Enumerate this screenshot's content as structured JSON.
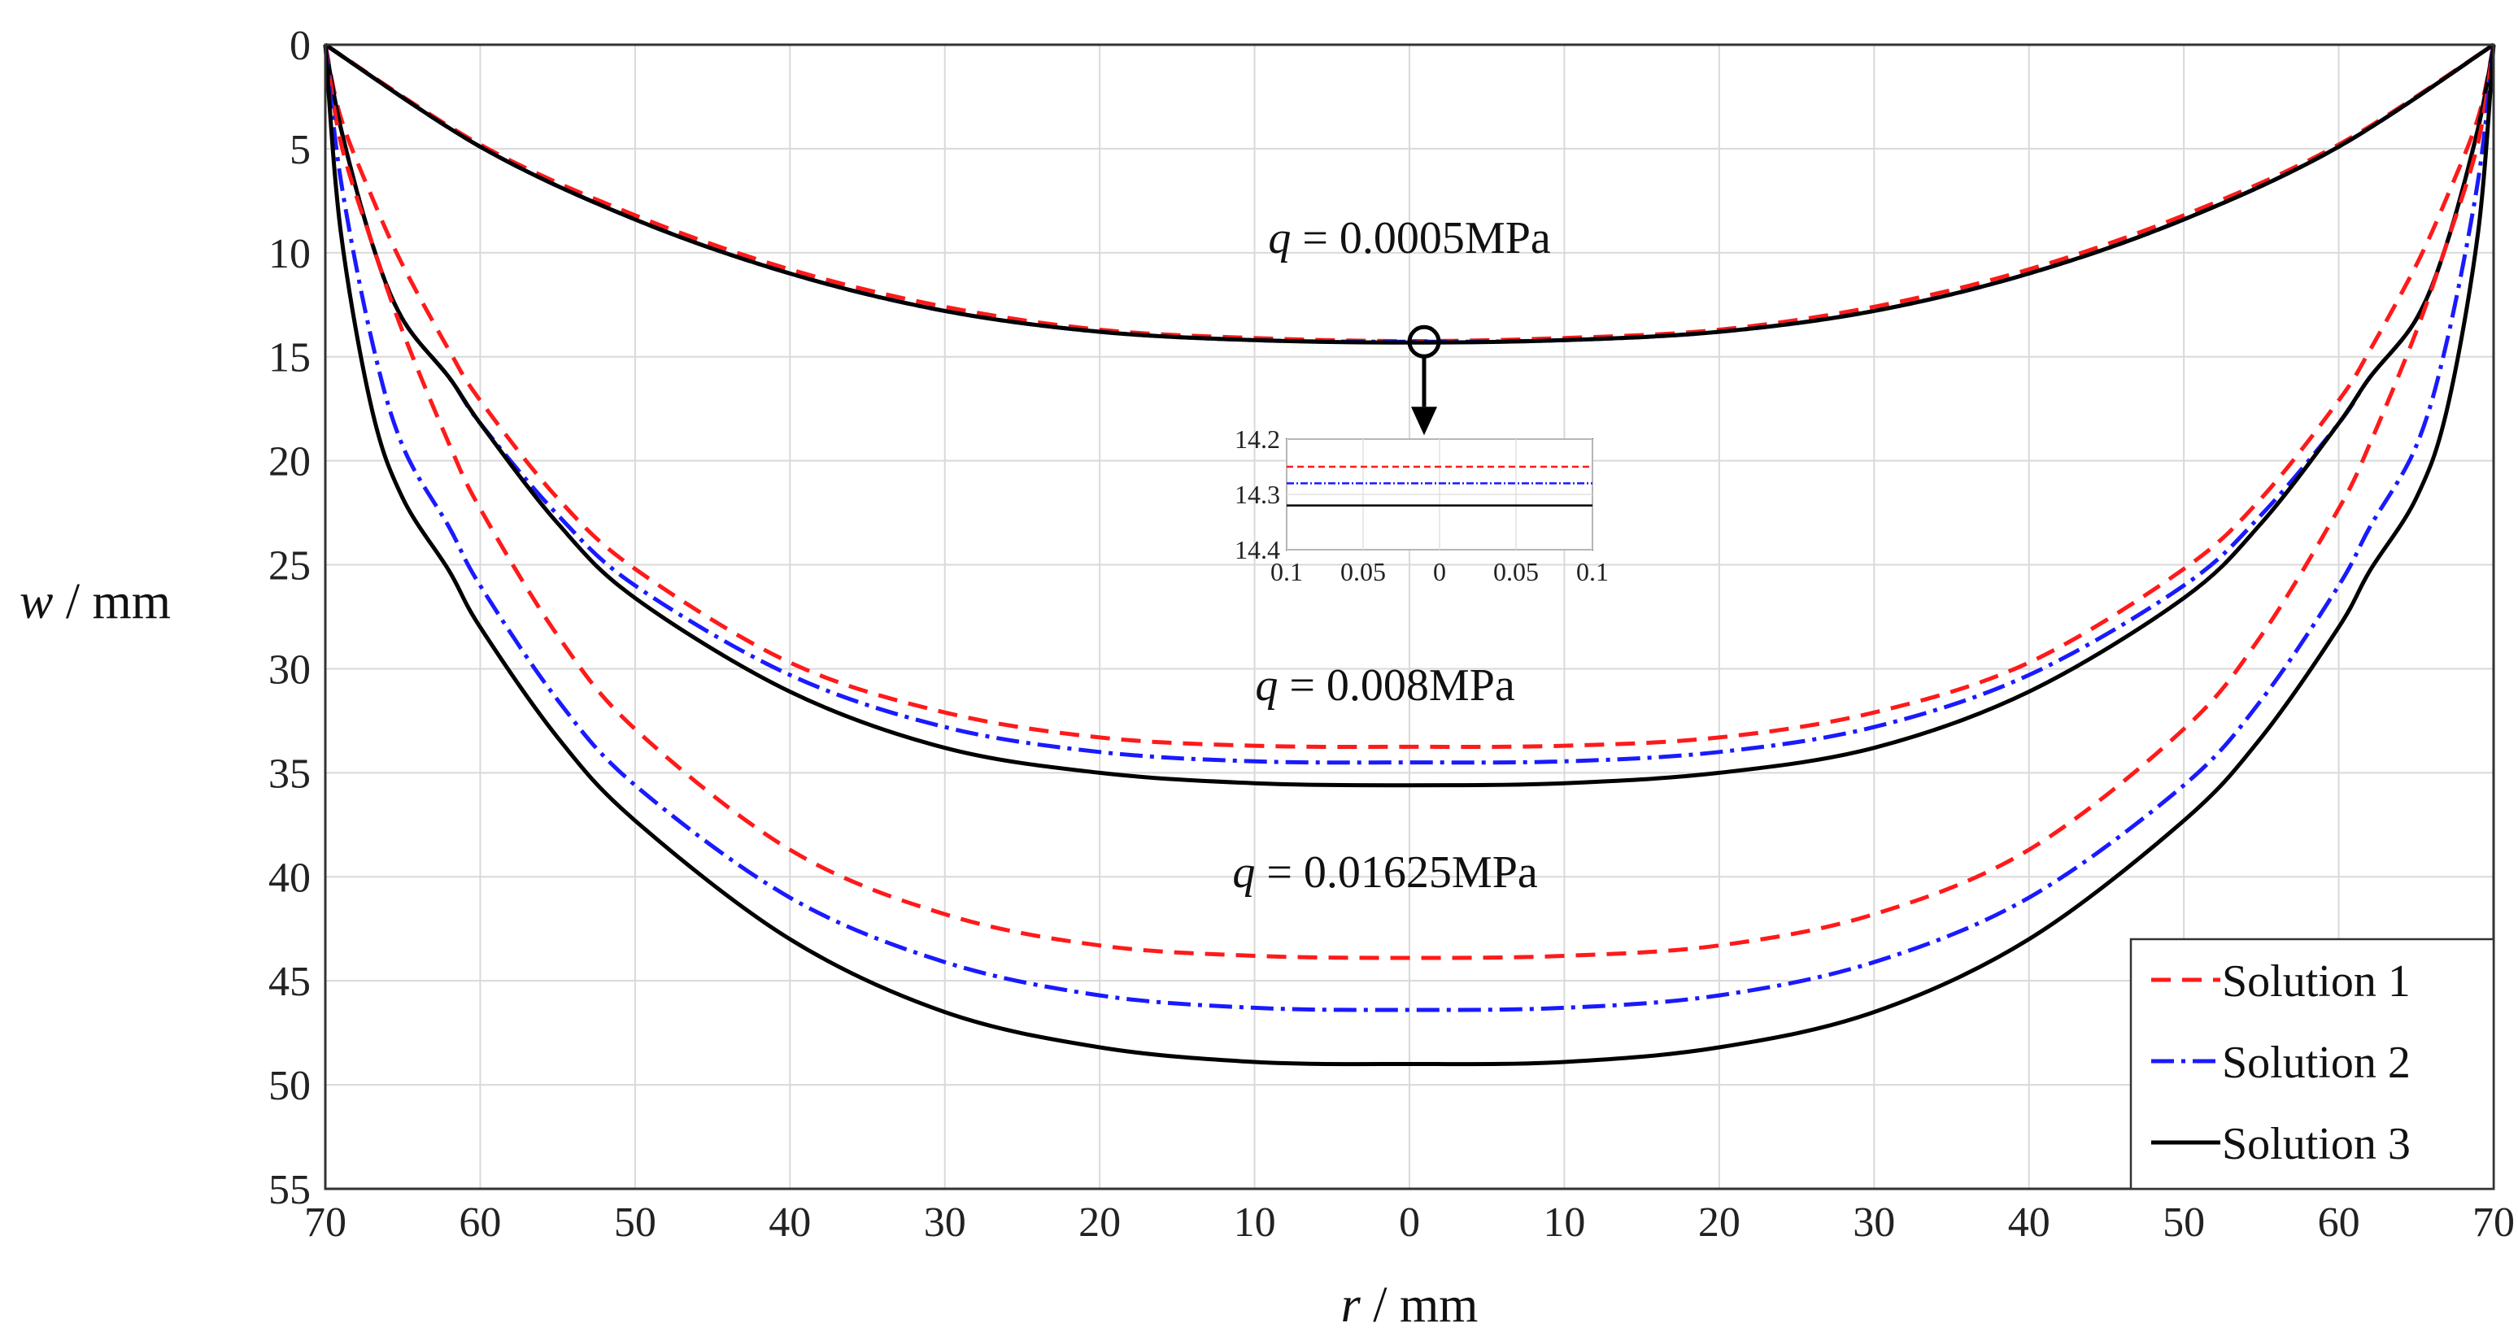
{
  "chart_data": {
    "type": "line",
    "title": "",
    "xlabel_var": "r",
    "xlabel_unit": " / mm",
    "ylabel_var": "w",
    "ylabel_unit": " / mm",
    "x_range": [
      -70,
      70
    ],
    "y_range": [
      0,
      55
    ],
    "y_inverted": true,
    "grid": true,
    "legend_position": "bottom-right",
    "x_ticks": [
      -70,
      -60,
      -50,
      -40,
      -30,
      -20,
      -10,
      0,
      10,
      20,
      30,
      40,
      50,
      60,
      70
    ],
    "x_tick_labels": [
      "70",
      "60",
      "50",
      "40",
      "30",
      "20",
      "10",
      "0",
      "10",
      "20",
      "30",
      "40",
      "50",
      "60",
      "70"
    ],
    "y_ticks": [
      0,
      5,
      10,
      15,
      20,
      25,
      30,
      35,
      40,
      45,
      50,
      55
    ],
    "y_tick_labels": [
      "0",
      "5",
      "10",
      "15",
      "20",
      "25",
      "30",
      "35",
      "40",
      "45",
      "50",
      "55"
    ],
    "series_styles": [
      {
        "name": "Solution 1",
        "color": "#ff1a1a",
        "dash": "24,14"
      },
      {
        "name": "Solution 2",
        "color": "#1a1aff",
        "dash": "28,9,5,9"
      },
      {
        "name": "Solution 3",
        "color": "#000000",
        "dash": ""
      }
    ],
    "load_cases": [
      {
        "label_var": "q",
        "label_value": " = 0.0005MPa",
        "label_at": {
          "r": 0,
          "w": 10
        },
        "center_deflection": [
          14.25,
          14.28,
          14.32
        ],
        "r": [
          -70,
          -60,
          -50,
          -40,
          -30,
          -20,
          -10,
          0,
          10,
          20,
          30,
          40,
          50,
          60,
          70
        ],
        "series": [
          {
            "name": "Solution 1",
            "values": [
              0,
              4.8,
              8.2,
              10.8,
              12.6,
              13.7,
              14.1,
              14.25,
              14.1,
              13.7,
              12.6,
              10.8,
              8.2,
              4.8,
              0
            ]
          },
          {
            "name": "Solution 2",
            "values": [
              0,
              4.9,
              8.4,
              11.0,
              12.8,
              13.8,
              14.2,
              14.28,
              14.2,
              13.8,
              12.8,
              11.0,
              8.4,
              4.9,
              0
            ]
          },
          {
            "name": "Solution 3",
            "values": [
              0,
              4.9,
              8.4,
              11.0,
              12.8,
              13.8,
              14.2,
              14.32,
              14.2,
              13.8,
              12.8,
              11.0,
              8.4,
              4.9,
              0
            ]
          }
        ]
      },
      {
        "label_var": "q",
        "label_value": " = 0.008MPa",
        "label_at": {
          "r": 0,
          "w": 31.5
        },
        "r": [
          -70,
          -69,
          -67,
          -65,
          -62,
          -60,
          -55,
          -50,
          -40,
          -30,
          -20,
          -10,
          0,
          10,
          20,
          30,
          40,
          50,
          55,
          60,
          62,
          65,
          67,
          69,
          70
        ],
        "series": [
          {
            "name": "Solution 1",
            "values": [
              0,
              3.5,
              7.3,
              10.6,
              14.7,
              17.1,
              21.8,
              25.2,
              29.7,
              32.1,
              33.3,
              33.7,
              33.75,
              33.7,
              33.3,
              32.1,
              29.7,
              25.2,
              21.8,
              17.1,
              14.7,
              10.6,
              7.3,
              3.5,
              0
            ]
          },
          {
            "name": "Solution 2",
            "values": [
              0,
              4.0,
              9.5,
              13.2,
              16.0,
              18.2,
              22.6,
              26.0,
              30.3,
              32.8,
              34.0,
              34.45,
              34.5,
              34.45,
              34.0,
              32.8,
              30.3,
              26.0,
              22.6,
              18.2,
              16.0,
              13.2,
              9.5,
              4.0,
              0
            ]
          },
          {
            "name": "Solution 3",
            "values": [
              0,
              4.0,
              9.5,
              13.2,
              16.0,
              18.2,
              23.0,
              26.6,
              31.1,
              33.8,
              35.0,
              35.5,
              35.6,
              35.5,
              35.0,
              33.8,
              31.1,
              26.6,
              23.0,
              18.2,
              16.0,
              13.2,
              9.5,
              4.0,
              0
            ]
          }
        ]
      },
      {
        "label_var": "q",
        "label_value": " = 0.01625MPa",
        "label_at": {
          "r": 0,
          "w": 40.5
        },
        "r": [
          -70,
          -69,
          -67,
          -65,
          -62,
          -60,
          -55,
          -50,
          -40,
          -30,
          -20,
          -10,
          0,
          10,
          20,
          30,
          40,
          50,
          55,
          60,
          62,
          65,
          67,
          69,
          70
        ],
        "series": [
          {
            "name": "Solution 1",
            "values": [
              0,
              4.7,
              9.5,
              13.8,
              19.2,
              22.3,
              28.4,
              32.9,
              38.7,
              41.8,
              43.3,
              43.8,
              43.9,
              43.8,
              43.3,
              41.8,
              38.7,
              32.9,
              28.4,
              22.3,
              19.2,
              13.8,
              9.5,
              4.7,
              0
            ]
          },
          {
            "name": "Solution 2",
            "values": [
              0,
              6.5,
              14.2,
              19.3,
              23.2,
              26.0,
              31.5,
              35.6,
              41.0,
              44.1,
              45.7,
              46.3,
              46.4,
              46.3,
              45.7,
              44.1,
              41.0,
              35.6,
              31.5,
              26.0,
              23.2,
              19.3,
              14.2,
              6.5,
              0
            ]
          },
          {
            "name": "Solution 3",
            "values": [
              0,
              9.0,
              17.5,
              21.8,
              25.3,
              28.0,
              33.3,
              37.3,
              43.0,
              46.5,
              48.2,
              48.9,
              49.0,
              48.9,
              48.2,
              46.5,
              43.0,
              37.3,
              33.3,
              28.0,
              25.3,
              21.8,
              17.5,
              9.0,
              0
            ]
          }
        ]
      }
    ],
    "inset": {
      "x_range": [
        -0.1,
        0.1
      ],
      "y_range": [
        14.2,
        14.4
      ],
      "x_tick_labels": [
        "0.1",
        "0.05",
        "0",
        "0.05",
        "0.1"
      ],
      "y_tick_labels": [
        "14.2",
        "14.3",
        "14.4"
      ],
      "values": [
        14.25,
        14.28,
        14.32
      ]
    }
  }
}
